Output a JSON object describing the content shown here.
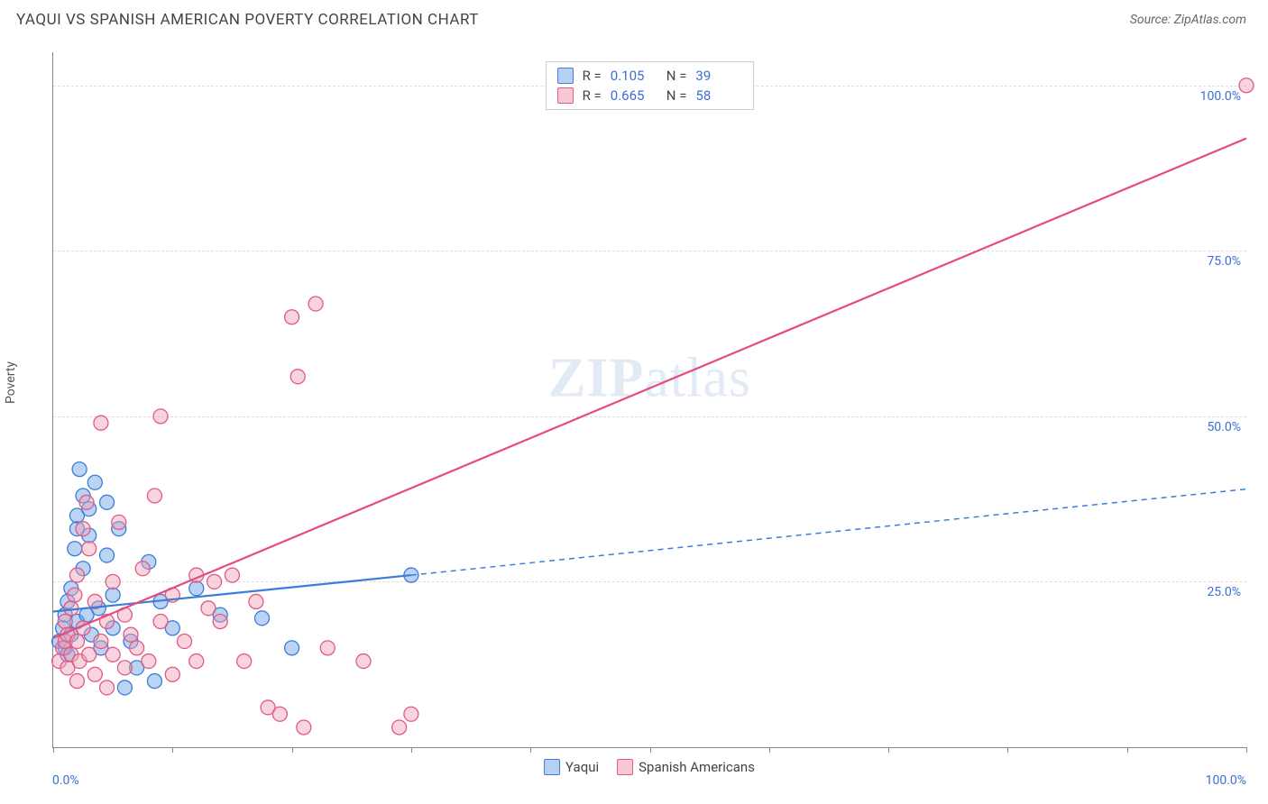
{
  "header": {
    "title": "YAQUI VS SPANISH AMERICAN POVERTY CORRELATION CHART",
    "source_prefix": "Source: ",
    "source_name": "ZipAtlas.com"
  },
  "chart": {
    "type": "scatter",
    "y_label": "Poverty",
    "watermark": "ZIPatlas",
    "background_color": "#ffffff",
    "grid_color": "#dddddd",
    "axis_color": "#888888",
    "xlim": [
      0,
      100
    ],
    "ylim": [
      0,
      105
    ],
    "x_ticks": [
      0,
      10,
      20,
      30,
      40,
      50,
      60,
      70,
      80,
      90,
      100
    ],
    "y_gridlines": [
      25,
      50,
      75,
      100
    ],
    "x_min_label": "0.0%",
    "x_max_label": "100.0%",
    "y_tick_labels": {
      "25": "25.0%",
      "50": "50.0%",
      "75": "75.0%",
      "100": "100.0%"
    },
    "marker_radius": 8,
    "marker_opacity": 0.45,
    "series": [
      {
        "name": "Yaqui",
        "color_fill": "#6aa0e6",
        "color_stroke": "#3b7dd8",
        "R": "0.105",
        "N": "39",
        "trend": {
          "x1": 0,
          "y1": 20.5,
          "x2": 30,
          "y2": 26,
          "x2_ext": 100,
          "y2_ext": 39,
          "stroke": "#3b7dd8",
          "width": 2.2,
          "dash_ext": "6,5"
        },
        "points": [
          [
            0.5,
            16
          ],
          [
            0.8,
            18
          ],
          [
            1,
            15
          ],
          [
            1,
            20
          ],
          [
            1.2,
            22
          ],
          [
            1.2,
            14
          ],
          [
            1.5,
            17
          ],
          [
            1.5,
            24
          ],
          [
            1.8,
            30
          ],
          [
            2,
            33
          ],
          [
            2,
            35
          ],
          [
            2,
            19
          ],
          [
            2.2,
            42
          ],
          [
            2.5,
            27
          ],
          [
            2.5,
            38
          ],
          [
            2.8,
            20
          ],
          [
            3,
            36
          ],
          [
            3,
            32
          ],
          [
            3.2,
            17
          ],
          [
            3.5,
            40
          ],
          [
            3.8,
            21
          ],
          [
            4,
            15
          ],
          [
            4.5,
            37
          ],
          [
            4.5,
            29
          ],
          [
            5,
            23
          ],
          [
            5,
            18
          ],
          [
            5.5,
            33
          ],
          [
            6,
            9
          ],
          [
            6.5,
            16
          ],
          [
            7,
            12
          ],
          [
            8,
            28
          ],
          [
            8.5,
            10
          ],
          [
            9,
            22
          ],
          [
            10,
            18
          ],
          [
            12,
            24
          ],
          [
            14,
            20
          ],
          [
            17.5,
            19.5
          ],
          [
            20,
            15
          ],
          [
            30,
            26
          ]
        ]
      },
      {
        "name": "Spanish Americans",
        "color_fill": "#f0a0b6",
        "color_stroke": "#e05a84",
        "R": "0.665",
        "N": "58",
        "trend": {
          "x1": 0,
          "y1": 16.5,
          "x2": 100,
          "y2": 92,
          "stroke": "#e64b7b",
          "width": 2.2
        },
        "points": [
          [
            0.5,
            13
          ],
          [
            0.8,
            15
          ],
          [
            1,
            16
          ],
          [
            1,
            19
          ],
          [
            1.2,
            12
          ],
          [
            1.2,
            17
          ],
          [
            1.5,
            14
          ],
          [
            1.5,
            21
          ],
          [
            1.8,
            23
          ],
          [
            2,
            10
          ],
          [
            2,
            16
          ],
          [
            2,
            26
          ],
          [
            2.2,
            13
          ],
          [
            2.5,
            18
          ],
          [
            2.5,
            33
          ],
          [
            2.8,
            37
          ],
          [
            3,
            14
          ],
          [
            3,
            30
          ],
          [
            3.5,
            11
          ],
          [
            3.5,
            22
          ],
          [
            4,
            49
          ],
          [
            4,
            16
          ],
          [
            4.5,
            9
          ],
          [
            4.5,
            19
          ],
          [
            5,
            25
          ],
          [
            5,
            14
          ],
          [
            5.5,
            34
          ],
          [
            6,
            12
          ],
          [
            6,
            20
          ],
          [
            6.5,
            17
          ],
          [
            7,
            15
          ],
          [
            7.5,
            27
          ],
          [
            8,
            13
          ],
          [
            8.5,
            38
          ],
          [
            9,
            50
          ],
          [
            9,
            19
          ],
          [
            10,
            11
          ],
          [
            10,
            23
          ],
          [
            11,
            16
          ],
          [
            12,
            26
          ],
          [
            12,
            13
          ],
          [
            13,
            21
          ],
          [
            13.5,
            25
          ],
          [
            14,
            19
          ],
          [
            15,
            26
          ],
          [
            16,
            13
          ],
          [
            17,
            22
          ],
          [
            18,
            6
          ],
          [
            19,
            5
          ],
          [
            20,
            65
          ],
          [
            20.5,
            56
          ],
          [
            21,
            3
          ],
          [
            22,
            67
          ],
          [
            23,
            15
          ],
          [
            26,
            13
          ],
          [
            29,
            3
          ],
          [
            30,
            5
          ],
          [
            100,
            100
          ]
        ]
      }
    ],
    "bottom_legend": [
      {
        "label": "Yaqui",
        "swatch": "blue"
      },
      {
        "label": "Spanish Americans",
        "swatch": "pink"
      }
    ],
    "stat_box": {
      "R_label": "R  =",
      "N_label": "N  ="
    }
  }
}
